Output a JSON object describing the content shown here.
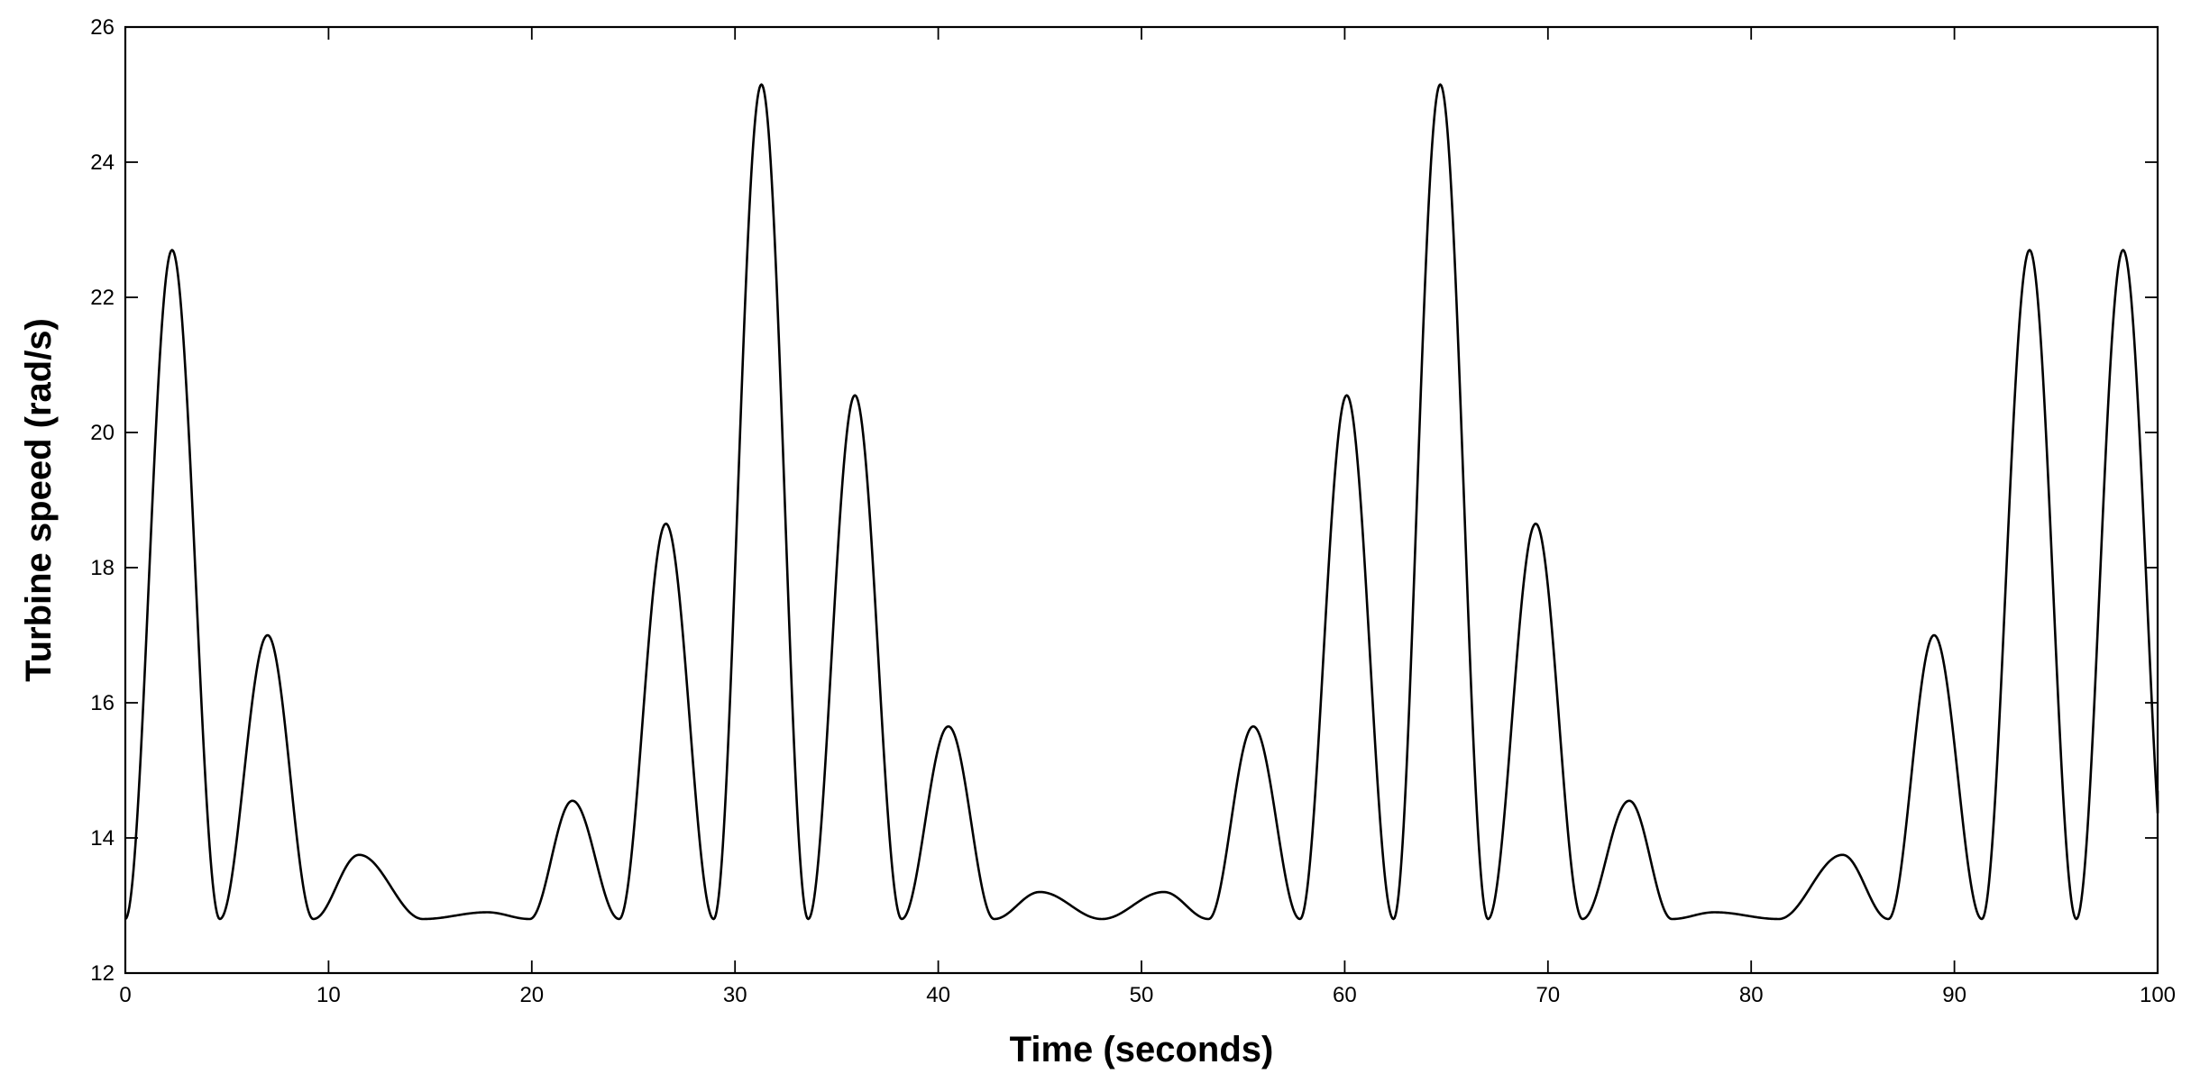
{
  "chart_data": {
    "type": "line",
    "title": "",
    "xlabel": "Time (seconds)",
    "ylabel": "Turbine speed (rad/s)",
    "xlim": [
      0,
      100
    ],
    "ylim": [
      12,
      26
    ],
    "xticks": [
      0,
      10,
      20,
      30,
      40,
      50,
      60,
      70,
      80,
      90,
      100
    ],
    "yticks": [
      12,
      14,
      16,
      18,
      20,
      22,
      24,
      26
    ],
    "grid": false,
    "legend": "none",
    "line_color": "#000000",
    "series": [
      {
        "baseline": 12.8,
        "peaks": [
          {
            "t": 2.3,
            "v": 22.7
          },
          {
            "t": 7.0,
            "v": 17.0
          },
          {
            "t": 11.5,
            "v": 13.75
          },
          {
            "t": 17.8,
            "v": 12.9
          },
          {
            "t": 22.0,
            "v": 14.55
          },
          {
            "t": 26.6,
            "v": 18.65
          },
          {
            "t": 31.3,
            "v": 25.15
          },
          {
            "t": 35.9,
            "v": 20.55
          },
          {
            "t": 40.5,
            "v": 15.65
          },
          {
            "t": 45.0,
            "v": 13.2
          },
          {
            "t": 51.1,
            "v": 13.2
          },
          {
            "t": 55.5,
            "v": 15.65
          },
          {
            "t": 60.1,
            "v": 20.55
          },
          {
            "t": 64.7,
            "v": 25.15
          },
          {
            "t": 69.4,
            "v": 18.65
          },
          {
            "t": 74.0,
            "v": 14.55
          },
          {
            "t": 78.2,
            "v": 12.9
          },
          {
            "t": 84.5,
            "v": 13.75
          },
          {
            "t": 89.0,
            "v": 17.0
          },
          {
            "t": 93.7,
            "v": 22.7
          },
          {
            "t": 98.3,
            "v": 22.7
          }
        ],
        "start": {
          "t": 0,
          "v": 12.8
        },
        "end": {
          "t": 100,
          "v": 14.7
        }
      }
    ]
  }
}
